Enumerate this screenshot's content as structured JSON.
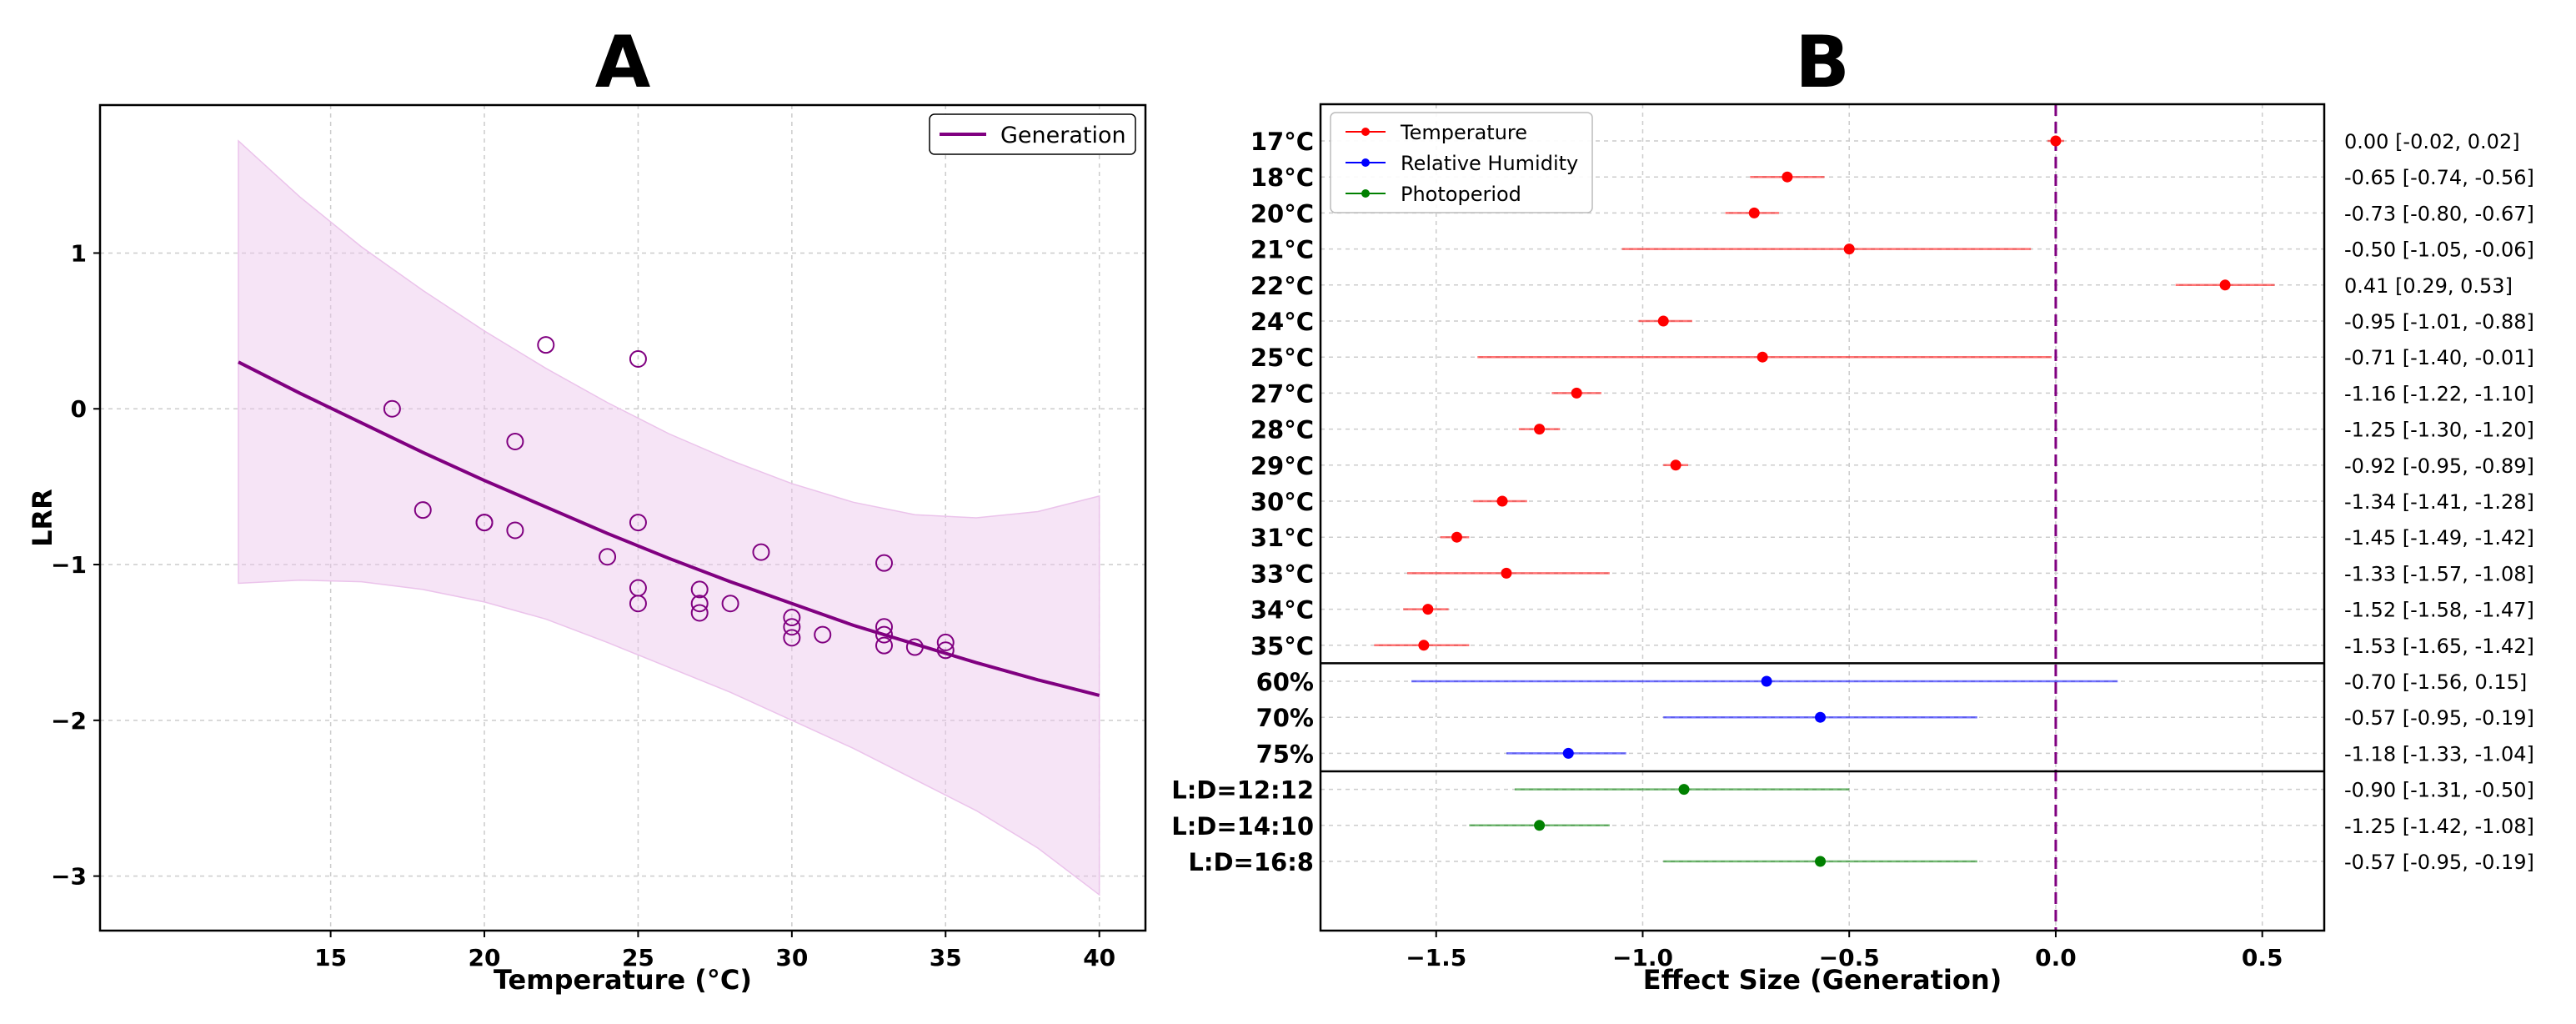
{
  "colors": {
    "generation": "#800080",
    "band_fill": "#ebc3eb",
    "temperature": "#ff0000",
    "humidity": "#0000ff",
    "photoperiod": "#008000",
    "grid": "#cccccc",
    "axis": "#000000"
  },
  "chart_data": [
    {
      "type": "scatter",
      "panel_label": "A",
      "xlabel": "Temperature (°C)",
      "ylabel": "LRR",
      "xlim": [
        7.5,
        41.5
      ],
      "ylim": [
        -3.35,
        1.95
      ],
      "x_ticks": [
        15,
        20,
        25,
        30,
        35,
        40
      ],
      "y_ticks": [
        1,
        0,
        -1,
        -2,
        -3
      ],
      "x_tick_labels": [
        "15",
        "20",
        "25",
        "30",
        "35",
        "40"
      ],
      "y_tick_labels": [
        "1",
        "0",
        "−1",
        "−2",
        "−3"
      ],
      "grid": true,
      "legend": {
        "position": "top-right",
        "entries": [
          "Generation"
        ]
      },
      "points": [
        {
          "x": 17,
          "y": 0.0
        },
        {
          "x": 18,
          "y": -0.65
        },
        {
          "x": 20,
          "y": -0.73
        },
        {
          "x": 20,
          "y": -0.73
        },
        {
          "x": 21,
          "y": -0.21
        },
        {
          "x": 21,
          "y": -0.78
        },
        {
          "x": 22,
          "y": 0.41
        },
        {
          "x": 24,
          "y": -0.95
        },
        {
          "x": 25,
          "y": 0.32
        },
        {
          "x": 25,
          "y": -0.73
        },
        {
          "x": 25,
          "y": -1.15
        },
        {
          "x": 25,
          "y": -1.25
        },
        {
          "x": 27,
          "y": -1.16
        },
        {
          "x": 27,
          "y": -1.25
        },
        {
          "x": 27,
          "y": -1.31
        },
        {
          "x": 28,
          "y": -1.25
        },
        {
          "x": 29,
          "y": -0.92
        },
        {
          "x": 30,
          "y": -1.34
        },
        {
          "x": 30,
          "y": -1.4
        },
        {
          "x": 30,
          "y": -1.47
        },
        {
          "x": 31,
          "y": -1.45
        },
        {
          "x": 33,
          "y": -0.99
        },
        {
          "x": 33,
          "y": -1.4
        },
        {
          "x": 33,
          "y": -1.45
        },
        {
          "x": 33,
          "y": -1.52
        },
        {
          "x": 34,
          "y": -1.53
        },
        {
          "x": 35,
          "y": -1.5
        },
        {
          "x": 35,
          "y": -1.55
        }
      ],
      "fit_line": {
        "name": "Generation",
        "x": [
          12,
          14,
          16,
          18,
          20,
          22,
          24,
          26,
          28,
          30,
          32,
          34,
          36,
          38,
          40
        ],
        "y": [
          0.3,
          0.1,
          -0.09,
          -0.28,
          -0.46,
          -0.63,
          -0.8,
          -0.96,
          -1.11,
          -1.25,
          -1.39,
          -1.51,
          -1.63,
          -1.74,
          -1.84
        ]
      },
      "band": {
        "x": [
          12,
          14,
          16,
          18,
          20,
          22,
          24,
          26,
          28,
          30,
          32,
          34,
          36,
          38,
          40
        ],
        "upper": [
          1.72,
          1.36,
          1.04,
          0.76,
          0.5,
          0.26,
          0.04,
          -0.16,
          -0.33,
          -0.48,
          -0.6,
          -0.68,
          -0.7,
          -0.66,
          -0.56
        ],
        "lower": [
          -1.12,
          -1.1,
          -1.11,
          -1.16,
          -1.24,
          -1.35,
          -1.5,
          -1.66,
          -1.82,
          -2.0,
          -2.18,
          -2.38,
          -2.58,
          -2.82,
          -3.12
        ]
      }
    },
    {
      "type": "forest",
      "panel_label": "B",
      "xlabel": "Effect Size (Generation)",
      "xlim": [
        -1.78,
        0.65
      ],
      "x_ticks": [
        -1.5,
        -1.0,
        -0.5,
        0.0,
        0.5
      ],
      "x_tick_labels": [
        "−1.5",
        "−1.0",
        "−0.5",
        "0.0",
        "0.5"
      ],
      "reference_line": 0.0,
      "grid": true,
      "legend": {
        "position": "top-left",
        "entries": [
          "Temperature",
          "Relative Humidity",
          "Photoperiod"
        ]
      },
      "groups": [
        {
          "name": "Temperature",
          "rows": [
            {
              "label": "17°C",
              "est": 0.0,
              "lo": -0.02,
              "hi": 0.02,
              "text": "0.00 [-0.02, 0.02]"
            },
            {
              "label": "18°C",
              "est": -0.65,
              "lo": -0.74,
              "hi": -0.56,
              "text": "-0.65 [-0.74, -0.56]"
            },
            {
              "label": "20°C",
              "est": -0.73,
              "lo": -0.8,
              "hi": -0.67,
              "text": "-0.73 [-0.80, -0.67]"
            },
            {
              "label": "21°C",
              "est": -0.5,
              "lo": -1.05,
              "hi": -0.06,
              "text": "-0.50 [-1.05, -0.06]"
            },
            {
              "label": "22°C",
              "est": 0.41,
              "lo": 0.29,
              "hi": 0.53,
              "text": "0.41 [0.29, 0.53]"
            },
            {
              "label": "24°C",
              "est": -0.95,
              "lo": -1.01,
              "hi": -0.88,
              "text": "-0.95 [-1.01, -0.88]"
            },
            {
              "label": "25°C",
              "est": -0.71,
              "lo": -1.4,
              "hi": -0.01,
              "text": "-0.71 [-1.40, -0.01]"
            },
            {
              "label": "27°C",
              "est": -1.16,
              "lo": -1.22,
              "hi": -1.1,
              "text": "-1.16 [-1.22, -1.10]"
            },
            {
              "label": "28°C",
              "est": -1.25,
              "lo": -1.3,
              "hi": -1.2,
              "text": "-1.25 [-1.30, -1.20]"
            },
            {
              "label": "29°C",
              "est": -0.92,
              "lo": -0.95,
              "hi": -0.89,
              "text": "-0.92 [-0.95, -0.89]"
            },
            {
              "label": "30°C",
              "est": -1.34,
              "lo": -1.41,
              "hi": -1.28,
              "text": "-1.34 [-1.41, -1.28]"
            },
            {
              "label": "31°C",
              "est": -1.45,
              "lo": -1.49,
              "hi": -1.42,
              "text": "-1.45 [-1.49, -1.42]"
            },
            {
              "label": "33°C",
              "est": -1.33,
              "lo": -1.57,
              "hi": -1.08,
              "text": "-1.33 [-1.57, -1.08]"
            },
            {
              "label": "34°C",
              "est": -1.52,
              "lo": -1.58,
              "hi": -1.47,
              "text": "-1.52 [-1.58, -1.47]"
            },
            {
              "label": "35°C",
              "est": -1.53,
              "lo": -1.65,
              "hi": -1.42,
              "text": "-1.53 [-1.65, -1.42]"
            }
          ]
        },
        {
          "name": "Relative Humidity",
          "rows": [
            {
              "label": "60%",
              "est": -0.7,
              "lo": -1.56,
              "hi": 0.15,
              "text": "-0.70 [-1.56, 0.15]"
            },
            {
              "label": "70%",
              "est": -0.57,
              "lo": -0.95,
              "hi": -0.19,
              "text": "-0.57 [-0.95, -0.19]"
            },
            {
              "label": "75%",
              "est": -1.18,
              "lo": -1.33,
              "hi": -1.04,
              "text": "-1.18 [-1.33, -1.04]"
            }
          ]
        },
        {
          "name": "Photoperiod",
          "rows": [
            {
              "label": "L:D=12:12",
              "est": -0.9,
              "lo": -1.31,
              "hi": -0.5,
              "text": "-0.90 [-1.31, -0.50]"
            },
            {
              "label": "L:D=14:10",
              "est": -1.25,
              "lo": -1.42,
              "hi": -1.08,
              "text": "-1.25 [-1.42, -1.08]"
            },
            {
              "label": "L:D=16:8",
              "est": -0.57,
              "lo": -0.95,
              "hi": -0.19,
              "text": "-0.57 [-0.95, -0.19]"
            }
          ]
        }
      ]
    }
  ]
}
